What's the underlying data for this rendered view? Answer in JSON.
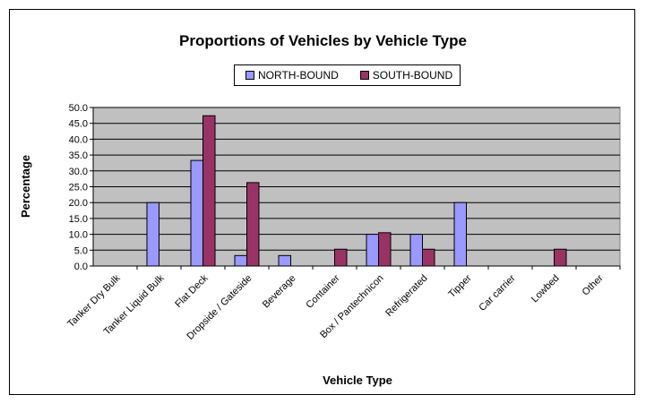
{
  "chart_data": {
    "type": "bar",
    "title": "Proportions of Vehicles by Vehicle Type",
    "xlabel": "Vehicle Type",
    "ylabel": "Percentage",
    "ylim": [
      0,
      50
    ],
    "yticks": [
      "0.0",
      "5.0",
      "10.0",
      "15.0",
      "20.0",
      "25.0",
      "30.0",
      "35.0",
      "40.0",
      "45.0",
      "50.0"
    ],
    "grid": true,
    "legend_position": "top",
    "categories": [
      "Tanker Dry Bulk",
      "Tanker Liquid Bulk",
      "Flat Deck",
      "Dropside / Gateside",
      "Beverage",
      "Container",
      "Box / Pantechnicon",
      "Refrigerated",
      "Tipper",
      "Car carrier",
      "Lowbed",
      "Other"
    ],
    "series": [
      {
        "name": "NORTH-BOUND",
        "color": "#9999ff",
        "values": [
          0,
          20.0,
          33.3,
          3.3,
          3.3,
          0,
          10.0,
          10.0,
          20.0,
          0,
          0,
          0
        ]
      },
      {
        "name": "SOUTH-BOUND",
        "color": "#993366",
        "values": [
          0,
          0,
          47.4,
          26.3,
          0,
          5.3,
          10.5,
          5.3,
          0,
          0,
          5.3,
          0
        ]
      }
    ],
    "plot_background": "#c0c0c0"
  }
}
